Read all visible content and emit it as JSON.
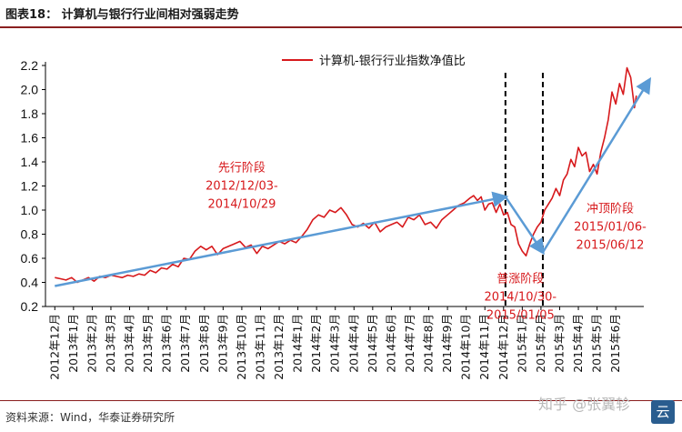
{
  "header": {
    "title": "图表18： 计算机与银行行业间相对强弱走势"
  },
  "footer": {
    "source": "资料来源：Wind，华泰证券研究所"
  },
  "watermark": {
    "text": "知乎 @张翼轸",
    "logo_char": "云"
  },
  "chart_data": {
    "type": "line",
    "title": "图表18： 计算机与银行行业间相对强弱走势",
    "xlabel": "",
    "ylabel": "",
    "ylim": [
      0.2,
      2.2
    ],
    "yticks": [
      "0.2",
      "0.4",
      "0.6",
      "0.8",
      "1.0",
      "1.2",
      "1.4",
      "1.6",
      "1.8",
      "2.0",
      "2.2"
    ],
    "grid": false,
    "legend_position": "top-center",
    "x_categories": [
      "2012年12月",
      "2013年1月",
      "2013年2月",
      "2013年3月",
      "2013年4月",
      "2013年5月",
      "2013年6月",
      "2013年7月",
      "2013年8月",
      "2013年9月",
      "2013年10月",
      "2013年11月",
      "2013年12月",
      "2014年1月",
      "2014年2月",
      "2014年3月",
      "2014年4月",
      "2014年5月",
      "2014年6月",
      "2014年7月",
      "2014年8月",
      "2014年9月",
      "2014年10月",
      "2014年11月",
      "2014年12月",
      "2015年1月",
      "2015年2月",
      "2015年3月",
      "2015年4月",
      "2015年5月",
      "2015年6月"
    ],
    "series": [
      {
        "name": "计算机-银行行业指数净值比",
        "color": "#d7191c",
        "x": [
          0,
          0.3,
          0.6,
          0.9,
          1.2,
          1.5,
          1.8,
          2.1,
          2.4,
          2.7,
          3.0,
          3.3,
          3.6,
          3.9,
          4.2,
          4.5,
          4.8,
          5.1,
          5.4,
          5.7,
          6.0,
          6.3,
          6.6,
          6.9,
          7.2,
          7.5,
          7.8,
          8.1,
          8.4,
          8.7,
          9.0,
          9.3,
          9.6,
          9.9,
          10.2,
          10.5,
          10.8,
          11.1,
          11.4,
          11.7,
          12.0,
          12.3,
          12.6,
          12.9,
          13.2,
          13.5,
          13.8,
          14.1,
          14.4,
          14.7,
          15.0,
          15.3,
          15.6,
          15.9,
          16.2,
          16.5,
          16.8,
          17.1,
          17.4,
          17.7,
          18.0,
          18.3,
          18.6,
          18.9,
          19.2,
          19.5,
          19.8,
          20.1,
          20.4,
          20.7,
          21.0,
          21.3,
          21.6,
          21.9,
          22.2,
          22.4,
          22.6,
          22.8,
          23.0,
          23.2,
          23.4,
          23.6,
          23.8,
          24.0,
          24.2,
          24.4,
          24.6,
          24.8,
          25.0,
          25.2,
          25.4,
          25.6,
          25.8,
          26.0,
          26.2,
          26.4,
          26.6,
          26.8,
          27.0,
          27.2,
          27.4,
          27.6,
          27.8,
          28.0,
          28.2,
          28.4,
          28.6,
          28.8,
          29.0,
          29.2,
          29.4,
          29.6,
          29.8,
          30.0,
          30.2,
          30.4,
          30.6,
          30.8,
          31.0,
          31.1
        ],
        "values": [
          0.44,
          0.43,
          0.42,
          0.44,
          0.4,
          0.42,
          0.44,
          0.41,
          0.45,
          0.44,
          0.46,
          0.45,
          0.44,
          0.46,
          0.45,
          0.47,
          0.46,
          0.5,
          0.48,
          0.52,
          0.51,
          0.55,
          0.53,
          0.6,
          0.59,
          0.66,
          0.7,
          0.67,
          0.7,
          0.63,
          0.68,
          0.7,
          0.72,
          0.74,
          0.69,
          0.71,
          0.64,
          0.7,
          0.68,
          0.71,
          0.74,
          0.72,
          0.75,
          0.73,
          0.78,
          0.84,
          0.92,
          0.96,
          0.94,
          1.0,
          0.98,
          1.02,
          0.96,
          0.88,
          0.86,
          0.89,
          0.85,
          0.9,
          0.82,
          0.86,
          0.88,
          0.9,
          0.86,
          0.94,
          0.92,
          0.96,
          0.88,
          0.9,
          0.85,
          0.92,
          0.96,
          1.0,
          1.04,
          1.06,
          1.1,
          1.12,
          1.08,
          1.11,
          1.0,
          1.05,
          1.06,
          0.98,
          1.05,
          0.96,
          0.98,
          0.88,
          0.86,
          0.72,
          0.66,
          0.62,
          0.72,
          0.8,
          0.86,
          0.9,
          1.0,
          1.05,
          1.1,
          1.18,
          1.12,
          1.25,
          1.3,
          1.42,
          1.36,
          1.52,
          1.45,
          1.48,
          1.32,
          1.38,
          1.3,
          1.48,
          1.6,
          1.75,
          1.98,
          1.88,
          2.05,
          1.96,
          2.18,
          2.1,
          1.85,
          1.95
        ]
      }
    ],
    "arrows": [
      {
        "from": [
          0,
          0.37
        ],
        "to": [
          24.1,
          1.11
        ]
      },
      {
        "from": [
          24.1,
          1.11
        ],
        "to": [
          26.1,
          0.65
        ]
      },
      {
        "from": [
          26.1,
          0.65
        ],
        "to": [
          31.8,
          2.08
        ]
      }
    ],
    "dividers": [
      24.1,
      26.1
    ],
    "annotations": [
      {
        "lines": [
          "先行阶段",
          "2012/12/03-",
          "2014/10/29"
        ],
        "x": 10.0,
        "y": 1.32
      },
      {
        "lines": [
          "普涨阶段",
          "2014/10/30-",
          "2015/01/05"
        ],
        "x": 24.9,
        "y": 0.4
      },
      {
        "lines": [
          "冲顶阶段",
          "2015/01/06-",
          "2015/06/12"
        ],
        "x": 29.7,
        "y": 0.98
      }
    ]
  }
}
